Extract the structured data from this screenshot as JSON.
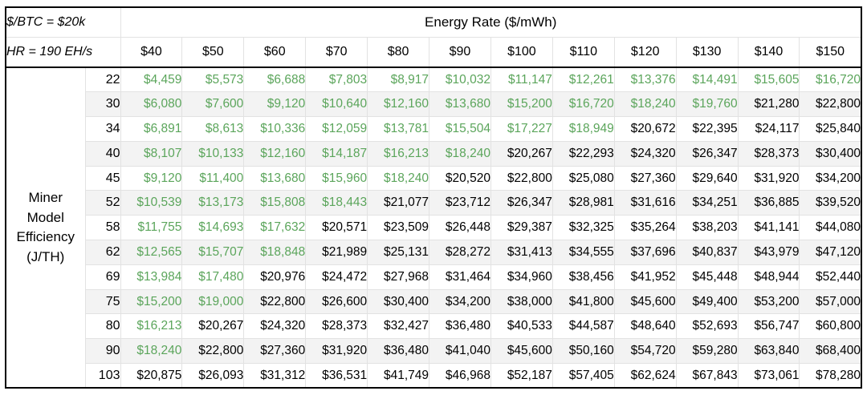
{
  "assumptions": {
    "btc_price": "$/BTC = $20k",
    "hash_rate": "HR = 190 EH/s"
  },
  "table": {
    "column_group_title": "Energy Rate ($/mWh)",
    "row_group_title_lines": [
      "Miner",
      "Model",
      "Efficiency",
      "(J/TH)"
    ],
    "green_threshold_usd": 20000
  },
  "colors": {
    "profitable_text": "#5ba55b",
    "default_text": "#000000",
    "stripe_row_bg": "#f3f3f3",
    "grid_line": "#e2e2e2",
    "frame_line": "#000000"
  },
  "chart_data": {
    "type": "table",
    "col_axis_label": "Energy Rate ($/mWh)",
    "row_axis_label": "Miner Model Efficiency (J/TH)",
    "assumptions": [
      "$/BTC = $20k",
      "HR = 190 EH/s"
    ],
    "columns": [
      "$40",
      "$50",
      "$60",
      "$70",
      "$80",
      "$90",
      "$100",
      "$110",
      "$120",
      "$130",
      "$140",
      "$150"
    ],
    "rows": [
      {
        "label": "22",
        "cells": [
          "$4,459",
          "$5,573",
          "$6,688",
          "$7,803",
          "$8,917",
          "$10,032",
          "$11,147",
          "$12,261",
          "$13,376",
          "$14,491",
          "$15,605",
          "$16,720"
        ]
      },
      {
        "label": "30",
        "cells": [
          "$6,080",
          "$7,600",
          "$9,120",
          "$10,640",
          "$12,160",
          "$13,680",
          "$15,200",
          "$16,720",
          "$18,240",
          "$19,760",
          "$21,280",
          "$22,800"
        ]
      },
      {
        "label": "34",
        "cells": [
          "$6,891",
          "$8,613",
          "$10,336",
          "$12,059",
          "$13,781",
          "$15,504",
          "$17,227",
          "$18,949",
          "$20,672",
          "$22,395",
          "$24,117",
          "$25,840"
        ]
      },
      {
        "label": "40",
        "cells": [
          "$8,107",
          "$10,133",
          "$12,160",
          "$14,187",
          "$16,213",
          "$18,240",
          "$20,267",
          "$22,293",
          "$24,320",
          "$26,347",
          "$28,373",
          "$30,400"
        ]
      },
      {
        "label": "45",
        "cells": [
          "$9,120",
          "$11,400",
          "$13,680",
          "$15,960",
          "$18,240",
          "$20,520",
          "$22,800",
          "$25,080",
          "$27,360",
          "$29,640",
          "$31,920",
          "$34,200"
        ]
      },
      {
        "label": "52",
        "cells": [
          "$10,539",
          "$13,173",
          "$15,808",
          "$18,443",
          "$21,077",
          "$23,712",
          "$26,347",
          "$28,981",
          "$31,616",
          "$34,251",
          "$36,885",
          "$39,520"
        ]
      },
      {
        "label": "58",
        "cells": [
          "$11,755",
          "$14,693",
          "$17,632",
          "$20,571",
          "$23,509",
          "$26,448",
          "$29,387",
          "$32,325",
          "$35,264",
          "$38,203",
          "$41,141",
          "$44,080"
        ]
      },
      {
        "label": "62",
        "cells": [
          "$12,565",
          "$15,707",
          "$18,848",
          "$21,989",
          "$25,131",
          "$28,272",
          "$31,413",
          "$34,555",
          "$37,696",
          "$40,837",
          "$43,979",
          "$47,120"
        ]
      },
      {
        "label": "69",
        "cells": [
          "$13,984",
          "$17,480",
          "$20,976",
          "$24,472",
          "$27,968",
          "$31,464",
          "$34,960",
          "$38,456",
          "$41,952",
          "$45,448",
          "$48,944",
          "$52,440"
        ]
      },
      {
        "label": "75",
        "cells": [
          "$15,200",
          "$19,000",
          "$22,800",
          "$26,600",
          "$30,400",
          "$34,200",
          "$38,000",
          "$41,800",
          "$45,600",
          "$49,400",
          "$53,200",
          "$57,000"
        ]
      },
      {
        "label": "80",
        "cells": [
          "$16,213",
          "$20,267",
          "$24,320",
          "$28,373",
          "$32,427",
          "$36,480",
          "$40,533",
          "$44,587",
          "$48,640",
          "$52,693",
          "$56,747",
          "$60,800"
        ]
      },
      {
        "label": "90",
        "cells": [
          "$18,240",
          "$22,800",
          "$27,360",
          "$31,920",
          "$36,480",
          "$41,040",
          "$45,600",
          "$50,160",
          "$54,720",
          "$59,280",
          "$63,840",
          "$68,400"
        ]
      },
      {
        "label": "103",
        "cells": [
          "$20,875",
          "$26,093",
          "$31,312",
          "$36,531",
          "$41,749",
          "$46,968",
          "$52,187",
          "$57,405",
          "$62,624",
          "$67,843",
          "$73,061",
          "$78,280"
        ]
      }
    ],
    "cell_color_rule": "values below $20,000 are rendered green"
  }
}
